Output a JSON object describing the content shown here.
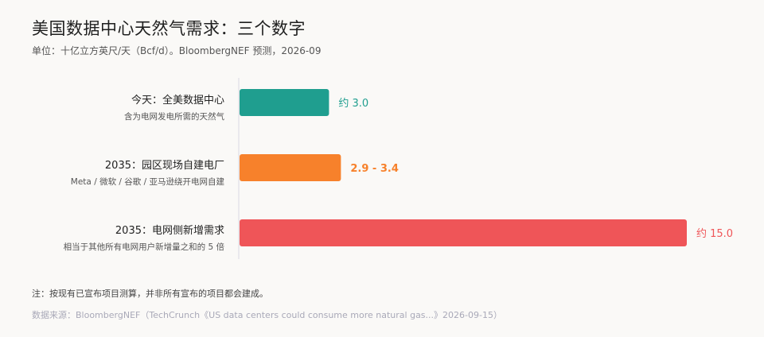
{
  "title": "美国数据中心天然气需求：三个数字",
  "subtitle": "单位：十亿立方英尺/天（Bcf/d）。BloombergNEF 预测，2026-09",
  "note": "注：按现有已宣布项目测算，并非所有宣布的项目都会建成。",
  "source": "数据来源：BloombergNEF（TechCrunch《US data centers could consume more natural gas...》2026-09-15）",
  "chart_data": {
    "type": "bar",
    "orientation": "horizontal",
    "xlim": [
      0,
      15.0
    ],
    "bars": [
      {
        "label": "今天：全美数据中心",
        "sublabel": "含为电网发电所需的天然气",
        "value": 3.0,
        "display": "约 3.0",
        "color": "#1f9e8f",
        "label_bold": false
      },
      {
        "label": "2035：园区现场自建电厂",
        "sublabel": "Meta / 微软 / 谷歌 / 亚马逊绕开电网自建",
        "value": 3.4,
        "range": [
          2.9,
          3.4
        ],
        "display": "2.9 - 3.4",
        "color": "#f7812b",
        "label_bold": true
      },
      {
        "label": "2035：电网侧新增需求",
        "sublabel": "相当于其他所有电网用户新增量之和的 5 倍",
        "value": 15.0,
        "display": "约 15.0",
        "color": "#ef5558",
        "label_bold": false
      }
    ]
  }
}
